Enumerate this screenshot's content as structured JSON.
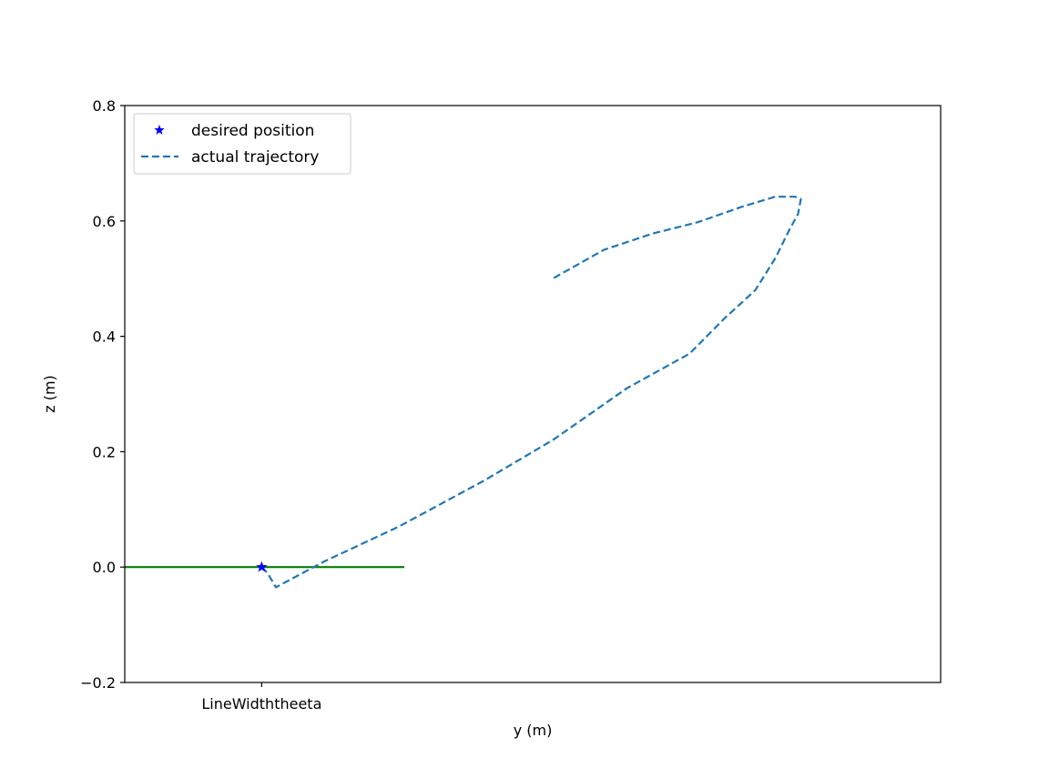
{
  "chart_data": {
    "type": "line",
    "title": "",
    "xlabel": "y (m)",
    "ylabel": "z (m)",
    "x_ticks": [
      {
        "value": 0,
        "label": "LineWidththeeta"
      }
    ],
    "ylim": [
      -0.2,
      0.8
    ],
    "yticks": [
      -0.2,
      0.0,
      0.2,
      0.4,
      0.6,
      0.8
    ],
    "ytick_labels": [
      "−0.2",
      "0.0",
      "0.2",
      "0.4",
      "0.6",
      "0.8"
    ],
    "xlim": [
      -0.48,
      2.38
    ],
    "grid": false,
    "legend": {
      "placement": "upper left",
      "entries": [
        {
          "label": "desired position",
          "marker": "star",
          "color": "#0000ff"
        },
        {
          "label": "actual trajectory",
          "style": "dashed",
          "color": "#1f77b4"
        }
      ]
    },
    "series": [
      {
        "name": "desired position",
        "kind": "marker",
        "color": "#0000ff",
        "x": [
          0.0
        ],
        "y": [
          0.0
        ]
      },
      {
        "name": "actual trajectory",
        "kind": "dashed-line",
        "color": "#1f77b4",
        "x": [
          0.0,
          0.02,
          0.05,
          0.22,
          0.48,
          0.78,
          1.02,
          1.28,
          1.5,
          1.62,
          1.73,
          1.8,
          1.85,
          1.88,
          1.89,
          1.87,
          1.8,
          1.68,
          1.53,
          1.37,
          1.2,
          1.02
        ],
        "y": [
          0.0,
          -0.01,
          -0.035,
          0.01,
          0.07,
          0.15,
          0.22,
          0.31,
          0.37,
          0.43,
          0.48,
          0.535,
          0.585,
          0.612,
          0.638,
          0.642,
          0.642,
          0.624,
          0.598,
          0.578,
          0.55,
          0.5
        ]
      },
      {
        "name": "",
        "kind": "line",
        "color": "#008000",
        "x": [
          -0.48,
          0.5
        ],
        "y": [
          0.0,
          0.0
        ]
      }
    ]
  }
}
